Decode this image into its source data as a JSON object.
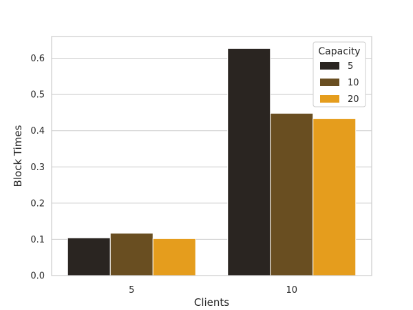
{
  "chart_data": {
    "type": "bar",
    "categories": [
      "5",
      "10"
    ],
    "series": [
      {
        "name": "5",
        "values": [
          0.104,
          0.627
        ],
        "color": "#2a2521"
      },
      {
        "name": "10",
        "values": [
          0.117,
          0.448
        ],
        "color": "#694e21"
      },
      {
        "name": "20",
        "values": [
          0.102,
          0.433
        ],
        "color": "#e59d1d"
      }
    ],
    "xlabel": "Clients",
    "ylabel": "Block Times",
    "ylim": [
      0,
      0.66
    ],
    "yticks": [
      "0.0",
      "0.1",
      "0.2",
      "0.3",
      "0.4",
      "0.5",
      "0.6"
    ],
    "grid": "horizontal",
    "legend": {
      "title": "Capacity",
      "placement": "top-right"
    }
  }
}
